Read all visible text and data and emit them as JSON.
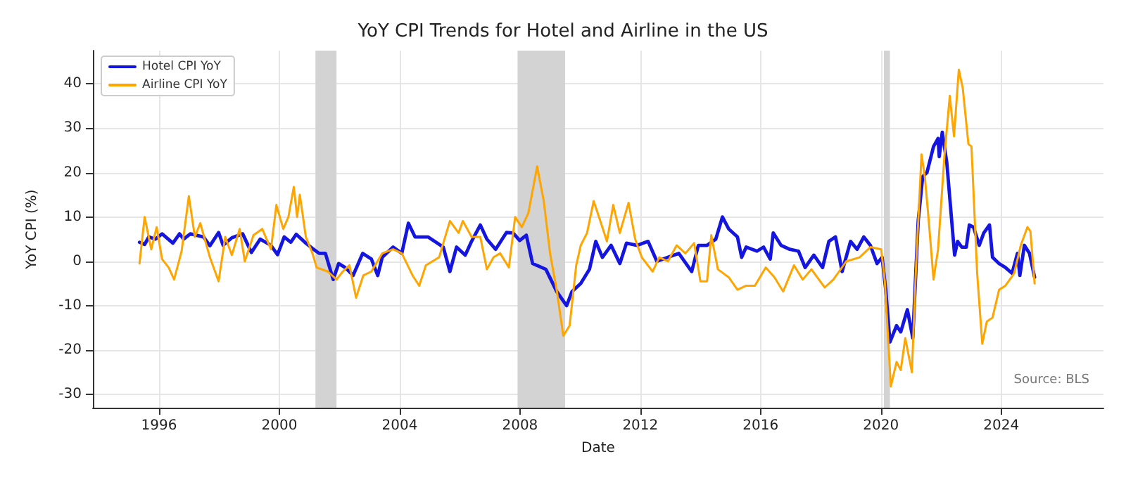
{
  "chart_data": {
    "type": "line",
    "title": "YoY CPI Trends for Hotel and Airline in the US",
    "xlabel": "Date",
    "ylabel": "YoY CPI (%)",
    "xlim": [
      1993.8,
      2027.4
    ],
    "xticks": [
      1996,
      2000,
      2004,
      2008,
      2012,
      2016,
      2020,
      2024
    ],
    "ylim": [
      -33,
      47.5
    ],
    "yticks": [
      -30,
      -20,
      -10,
      0,
      10,
      20,
      30,
      40
    ],
    "grid": true,
    "legend": "top left",
    "marker": "none",
    "line_style": "solid",
    "annotations": [
      "Source: BLS"
    ],
    "bands": [
      {
        "axis": "x",
        "from": 2001.2,
        "to": 2001.9,
        "color": "#d3d3d3"
      },
      {
        "axis": "x",
        "from": 2007.92,
        "to": 2009.5,
        "color": "#d3d3d3"
      },
      {
        "axis": "x",
        "from": 2020.1,
        "to": 2020.3,
        "color": "#d3d3d3"
      }
    ],
    "series": [
      {
        "name": "Hotel CPI YoY",
        "color": "#1515e0",
        "x": [
          1995.35,
          1995.52,
          1995.66,
          1995.88,
          1996.1,
          1996.46,
          1996.68,
          1996.82,
          1997.04,
          1997.48,
          1997.69,
          1997.98,
          1998.13,
          1998.42,
          1998.78,
          1999.07,
          1999.36,
          1999.72,
          1999.94,
          2000.16,
          2000.38,
          2000.56,
          2000.88,
          2001.1,
          2001.32,
          2001.53,
          2001.79,
          2001.97,
          2002.19,
          2002.45,
          2002.77,
          2003.06,
          2003.27,
          2003.42,
          2003.78,
          2004.07,
          2004.29,
          2004.51,
          2004.94,
          2005.45,
          2005.67,
          2005.89,
          2006.18,
          2006.39,
          2006.68,
          2006.9,
          2007.19,
          2007.55,
          2007.77,
          2007.99,
          2008.21,
          2008.42,
          2008.86,
          2009.22,
          2009.55,
          2009.73,
          2010.02,
          2010.31,
          2010.52,
          2010.74,
          2011.03,
          2011.32,
          2011.54,
          2011.9,
          2012.26,
          2012.55,
          2012.92,
          2013.28,
          2013.71,
          2013.93,
          2014.22,
          2014.51,
          2014.73,
          2014.94,
          2015.23,
          2015.37,
          2015.52,
          2015.88,
          2016.1,
          2016.32,
          2016.42,
          2016.68,
          2016.97,
          2017.26,
          2017.48,
          2017.77,
          2018.06,
          2018.27,
          2018.49,
          2018.71,
          2018.99,
          2019.21,
          2019.43,
          2019.65,
          2019.87,
          2020.04,
          2020.16,
          2020.3,
          2020.52,
          2020.66,
          2020.88,
          2021.06,
          2021.24,
          2021.39,
          2021.53,
          2021.75,
          2021.9,
          2021.94,
          2022.04,
          2022.19,
          2022.45,
          2022.55,
          2022.69,
          2022.84,
          2022.94,
          2023.08,
          2023.27,
          2023.42,
          2023.61,
          2023.71,
          2023.93,
          2024.14,
          2024.36,
          2024.54,
          2024.62,
          2024.77,
          2024.94,
          2025.11
        ],
        "values": [
          4.3,
          3.8,
          5.5,
          5,
          6.2,
          4.1,
          6.2,
          5,
          6.2,
          5.5,
          3.5,
          6.5,
          3.6,
          5.3,
          6.2,
          2,
          5,
          3.6,
          1.5,
          5.5,
          4.3,
          6.1,
          4.1,
          2.9,
          1.8,
          1.8,
          -4.1,
          -0.5,
          -1.4,
          -3.2,
          1.8,
          0.5,
          -3.2,
          0.9,
          3.2,
          1.8,
          8.6,
          5.5,
          5.5,
          3.2,
          -2.3,
          3.2,
          1.4,
          4.5,
          8.2,
          5,
          2.7,
          6.5,
          6.4,
          4.7,
          5.9,
          -0.5,
          -1.8,
          -6.8,
          -10,
          -6.8,
          -5,
          -1.8,
          4.5,
          0.9,
          3.6,
          -0.5,
          4.1,
          3.6,
          4.5,
          0,
          0.9,
          1.8,
          -2.3,
          3.6,
          3.6,
          5,
          10,
          7.3,
          5.5,
          0.9,
          3.2,
          2.3,
          3.2,
          0.5,
          6.4,
          3.6,
          2.7,
          2.3,
          -1.4,
          1.4,
          -1.4,
          4.5,
          5.5,
          -2.3,
          4.5,
          2.7,
          5.5,
          3.6,
          -0.5,
          0.9,
          -6.4,
          -18.2,
          -14.5,
          -15.9,
          -10.9,
          -17.3,
          9.1,
          19.1,
          20,
          25.9,
          27.7,
          23.6,
          29.1,
          22.3,
          1.4,
          4.5,
          3.2,
          3.2,
          8.2,
          7.7,
          3.6,
          6.4,
          8.2,
          0.9,
          -0.5,
          -1.4,
          -2.7,
          1.8,
          -3.2,
          3.6,
          1.8,
          -3.6
        ]
      },
      {
        "name": "Airline CPI YoY",
        "color": "#ffa500",
        "x": [
          1995.35,
          1995.52,
          1995.74,
          1995.92,
          1996.1,
          1996.32,
          1996.5,
          1996.75,
          1996.99,
          1997.19,
          1997.37,
          1997.69,
          1997.98,
          1998.2,
          1998.42,
          1998.68,
          1998.85,
          1999.14,
          1999.43,
          1999.72,
          1999.9,
          2000.13,
          2000.3,
          2000.48,
          2000.59,
          2000.68,
          2000.88,
          2001.1,
          2001.24,
          2001.61,
          2001.9,
          2002.11,
          2002.33,
          2002.55,
          2002.79,
          2003.06,
          2003.42,
          2003.78,
          2004.07,
          2004.43,
          2004.65,
          2004.87,
          2005.31,
          2005.67,
          2005.96,
          2006.1,
          2006.39,
          2006.68,
          2006.9,
          2007.12,
          2007.34,
          2007.63,
          2007.84,
          2008.06,
          2008.28,
          2008.57,
          2008.79,
          2009.0,
          2009.22,
          2009.44,
          2009.65,
          2009.87,
          2010.02,
          2010.23,
          2010.45,
          2010.67,
          2010.89,
          2011.1,
          2011.32,
          2011.61,
          2011.83,
          2012.05,
          2012.41,
          2012.63,
          2012.92,
          2013.21,
          2013.5,
          2013.79,
          2014.0,
          2014.22,
          2014.36,
          2014.58,
          2014.94,
          2015.23,
          2015.52,
          2015.81,
          2016.17,
          2016.46,
          2016.75,
          2017.11,
          2017.4,
          2017.69,
          2018.13,
          2018.42,
          2018.85,
          2019.29,
          2019.65,
          2020.01,
          2020.13,
          2020.33,
          2020.52,
          2020.66,
          2020.81,
          2021.03,
          2021.17,
          2021.35,
          2021.46,
          2021.58,
          2021.75,
          2021.9,
          2022.11,
          2022.29,
          2022.43,
          2022.59,
          2022.72,
          2022.91,
          2023.01,
          2023.2,
          2023.37,
          2023.52,
          2023.71,
          2023.93,
          2024.14,
          2024.43,
          2024.65,
          2024.87,
          2024.97,
          2025.11
        ],
        "values": [
          -0.5,
          10,
          2.7,
          7.7,
          0.5,
          -1.4,
          -4.1,
          2.3,
          14.7,
          5.5,
          8.6,
          0.9,
          -4.5,
          5.5,
          1.4,
          7.3,
          0,
          5.9,
          7.3,
          2.7,
          12.7,
          7.3,
          10,
          16.8,
          10,
          15,
          5.5,
          1.8,
          -1.4,
          -2.3,
          -4.1,
          -2.3,
          -0.9,
          -8.2,
          -3.2,
          -2.3,
          1.8,
          2.7,
          1.8,
          -3.2,
          -5.5,
          -0.9,
          0.9,
          9.1,
          6.4,
          9.1,
          5.5,
          5.5,
          -1.8,
          0.9,
          1.8,
          -1.4,
          10,
          7.7,
          10.9,
          21.4,
          13.6,
          1.8,
          -6.4,
          -16.8,
          -14.5,
          -0.9,
          3.6,
          6.4,
          13.6,
          9.1,
          4.5,
          12.7,
          6.4,
          13.2,
          5,
          0.9,
          -2.3,
          0.9,
          0,
          3.6,
          1.8,
          4.1,
          -4.5,
          -4.5,
          5.9,
          -1.8,
          -3.6,
          -6.4,
          -5.5,
          -5.5,
          -1.4,
          -3.6,
          -6.8,
          -0.9,
          -4.1,
          -1.8,
          -5.9,
          -4.1,
          0,
          0.9,
          3.2,
          2.7,
          -4.5,
          -28.2,
          -22.7,
          -24.5,
          -17.3,
          -25,
          -0.9,
          24.1,
          19.1,
          10,
          -4.1,
          2.7,
          23.6,
          37.3,
          28.2,
          43.2,
          39.1,
          26.4,
          25.9,
          -2.7,
          -18.6,
          -13.6,
          -12.7,
          -6.4,
          -5.5,
          -2.7,
          3.6,
          7.7,
          6.8,
          -5
        ]
      }
    ]
  }
}
